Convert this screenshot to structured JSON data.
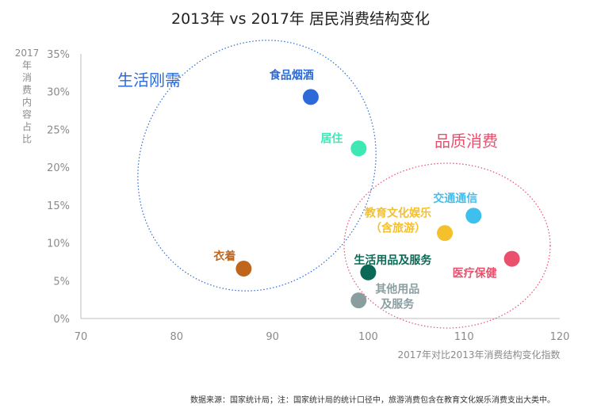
{
  "chart_data": {
    "type": "scatter",
    "title": "2013年 vs 2017年 居民消费结构变化",
    "xlabel": "2017年对比2013年消费结构变化指数",
    "ylabel": "2017年消费内容占比",
    "xlim": [
      70,
      120
    ],
    "ylim": [
      0,
      35
    ],
    "x_ticks": [
      "70",
      "80",
      "90",
      "100",
      "110",
      "120"
    ],
    "y_ticks": [
      "0%",
      "5%",
      "10%",
      "15%",
      "20%",
      "25%",
      "30%",
      "35%"
    ],
    "points": [
      {
        "name": "食品烟酒",
        "x": 94,
        "y": 29.3,
        "color": "#2b6ad8",
        "label_lines": [
          "食品烟酒"
        ]
      },
      {
        "name": "居住",
        "x": 99,
        "y": 22.5,
        "color": "#3ee8b4",
        "label_lines": [
          "居住"
        ]
      },
      {
        "name": "衣着",
        "x": 87,
        "y": 6.6,
        "color": "#c0661c",
        "label_lines": [
          "衣着"
        ]
      },
      {
        "name": "交通通信",
        "x": 111,
        "y": 13.6,
        "color": "#3ec0ee",
        "label_lines": [
          "交通通信"
        ]
      },
      {
        "name": "教育文化娱乐（含旅游）",
        "x": 108,
        "y": 11.3,
        "color": "#f4c02c",
        "label_lines": [
          "教育文化娱乐",
          "（含旅游）"
        ]
      },
      {
        "name": "医疗保健",
        "x": 115,
        "y": 7.9,
        "color": "#e9506e",
        "label_lines": [
          "医疗保健"
        ]
      },
      {
        "name": "生活用品及服务",
        "x": 100,
        "y": 6.1,
        "color": "#0b6a57",
        "label_lines": [
          "生活用品及服务"
        ]
      },
      {
        "name": "其他用品及服务",
        "x": 99,
        "y": 2.4,
        "color": "#8a9ea0",
        "label_lines": [
          "其他用品",
          "及服务"
        ]
      }
    ],
    "groups": [
      {
        "name": "生活刚需",
        "color": "#2b6ad8"
      },
      {
        "name": "品质消费",
        "color": "#e9506e"
      }
    ],
    "grid": false
  },
  "footnote": "数据来源：国家统计局；注：国家统计局的统计口径中，旅游消费包含在教育文化娱乐消费支出大类中。"
}
